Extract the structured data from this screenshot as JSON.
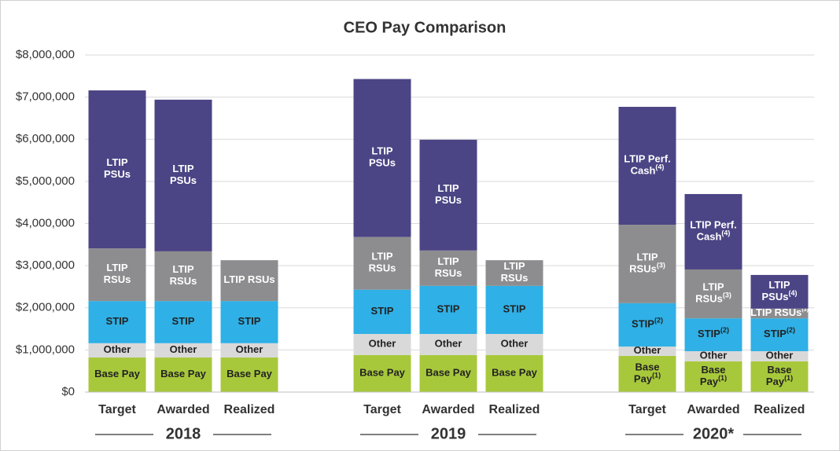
{
  "chart_data": {
    "type": "stacked_bar",
    "title": "CEO Pay Comparison",
    "groups": [
      "2018",
      "2019",
      "2020*"
    ],
    "categories": [
      "Target",
      "Awarded",
      "Realized",
      "Target",
      "Awarded",
      "Realized",
      "Target",
      "Awarded",
      "Realized"
    ],
    "ylim": [
      0,
      8000000
    ],
    "yticks": [
      {
        "value": 0,
        "label": "$0"
      },
      {
        "value": 1000000,
        "label": "$1,000,000"
      },
      {
        "value": 2000000,
        "label": "$2,000,000"
      },
      {
        "value": 3000000,
        "label": "$3,000,000"
      },
      {
        "value": 4000000,
        "label": "$4,000,000"
      },
      {
        "value": 5000000,
        "label": "$5,000,000"
      },
      {
        "value": 6000000,
        "label": "$6,000,000"
      },
      {
        "value": 7000000,
        "label": "$7,000,000"
      },
      {
        "value": 8000000,
        "label": "$8,000,000"
      }
    ],
    "grid": true,
    "series": [
      {
        "color": "#a8c83c",
        "label_color": "#222222",
        "values": [
          820000,
          820000,
          820000,
          880000,
          880000,
          880000,
          860000,
          730000,
          730000
        ],
        "labels": [
          "Base Pay",
          "Base Pay",
          "Base Pay",
          "Base Pay",
          "Base Pay",
          "Base Pay",
          "Base\nPay",
          "Base\nPay",
          "Base\nPay"
        ],
        "notes": [
          null,
          null,
          null,
          null,
          null,
          null,
          "(1)",
          "(1)",
          "(1)"
        ]
      },
      {
        "color": "#d9d9d9",
        "label_color": "#222222",
        "values": [
          340000,
          340000,
          340000,
          500000,
          500000,
          500000,
          220000,
          240000,
          240000
        ],
        "labels": [
          "Other",
          "Other",
          "Other",
          "Other",
          "Other",
          "Other",
          "Other",
          "Other",
          "Other"
        ],
        "notes": [
          null,
          null,
          null,
          null,
          null,
          null,
          null,
          null,
          null
        ]
      },
      {
        "color": "#2fb0e6",
        "label_color": "#222222",
        "values": [
          1000000,
          1000000,
          1000000,
          1050000,
          1140000,
          1140000,
          1030000,
          780000,
          780000
        ],
        "labels": [
          "STIP",
          "STIP",
          "STIP",
          "STIP",
          "STIP",
          "STIP",
          "STIP",
          "STIP",
          "STIP"
        ],
        "notes": [
          null,
          null,
          null,
          null,
          null,
          null,
          "(2)",
          "(2)",
          "(2)"
        ]
      },
      {
        "color": "#8d8d8f",
        "label_color": "#ffffff",
        "values": [
          1250000,
          1180000,
          970000,
          1250000,
          840000,
          610000,
          1860000,
          1160000,
          230000
        ],
        "labels": [
          "LTIP\nRSUs",
          "LTIP\nRSUs",
          "LTIP RSUs",
          "LTIP\nRSUs",
          "LTIP\nRSUs",
          "LTIP\nRSUs",
          "LTIP\nRSUs",
          "LTIP\nRSUs",
          "LTIP RSUs"
        ],
        "notes": [
          null,
          null,
          null,
          null,
          null,
          null,
          "(3)",
          "(3)",
          "(3)"
        ]
      },
      {
        "color": "#4b4585",
        "label_color": "#ffffff",
        "values": [
          3750000,
          3600000,
          null,
          3750000,
          2630000,
          null,
          2800000,
          1790000,
          800000
        ],
        "labels": [
          "LTIP\nPSUs",
          "LTIP\nPSUs",
          null,
          "LTIP\nPSUs",
          "LTIP\nPSUs",
          null,
          "LTIP Perf.\nCash",
          "LTIP Perf.\nCash",
          "LTIP\nPSUs"
        ],
        "notes": [
          null,
          null,
          null,
          null,
          null,
          null,
          "(4)",
          "(4)",
          "(4)"
        ]
      }
    ]
  }
}
